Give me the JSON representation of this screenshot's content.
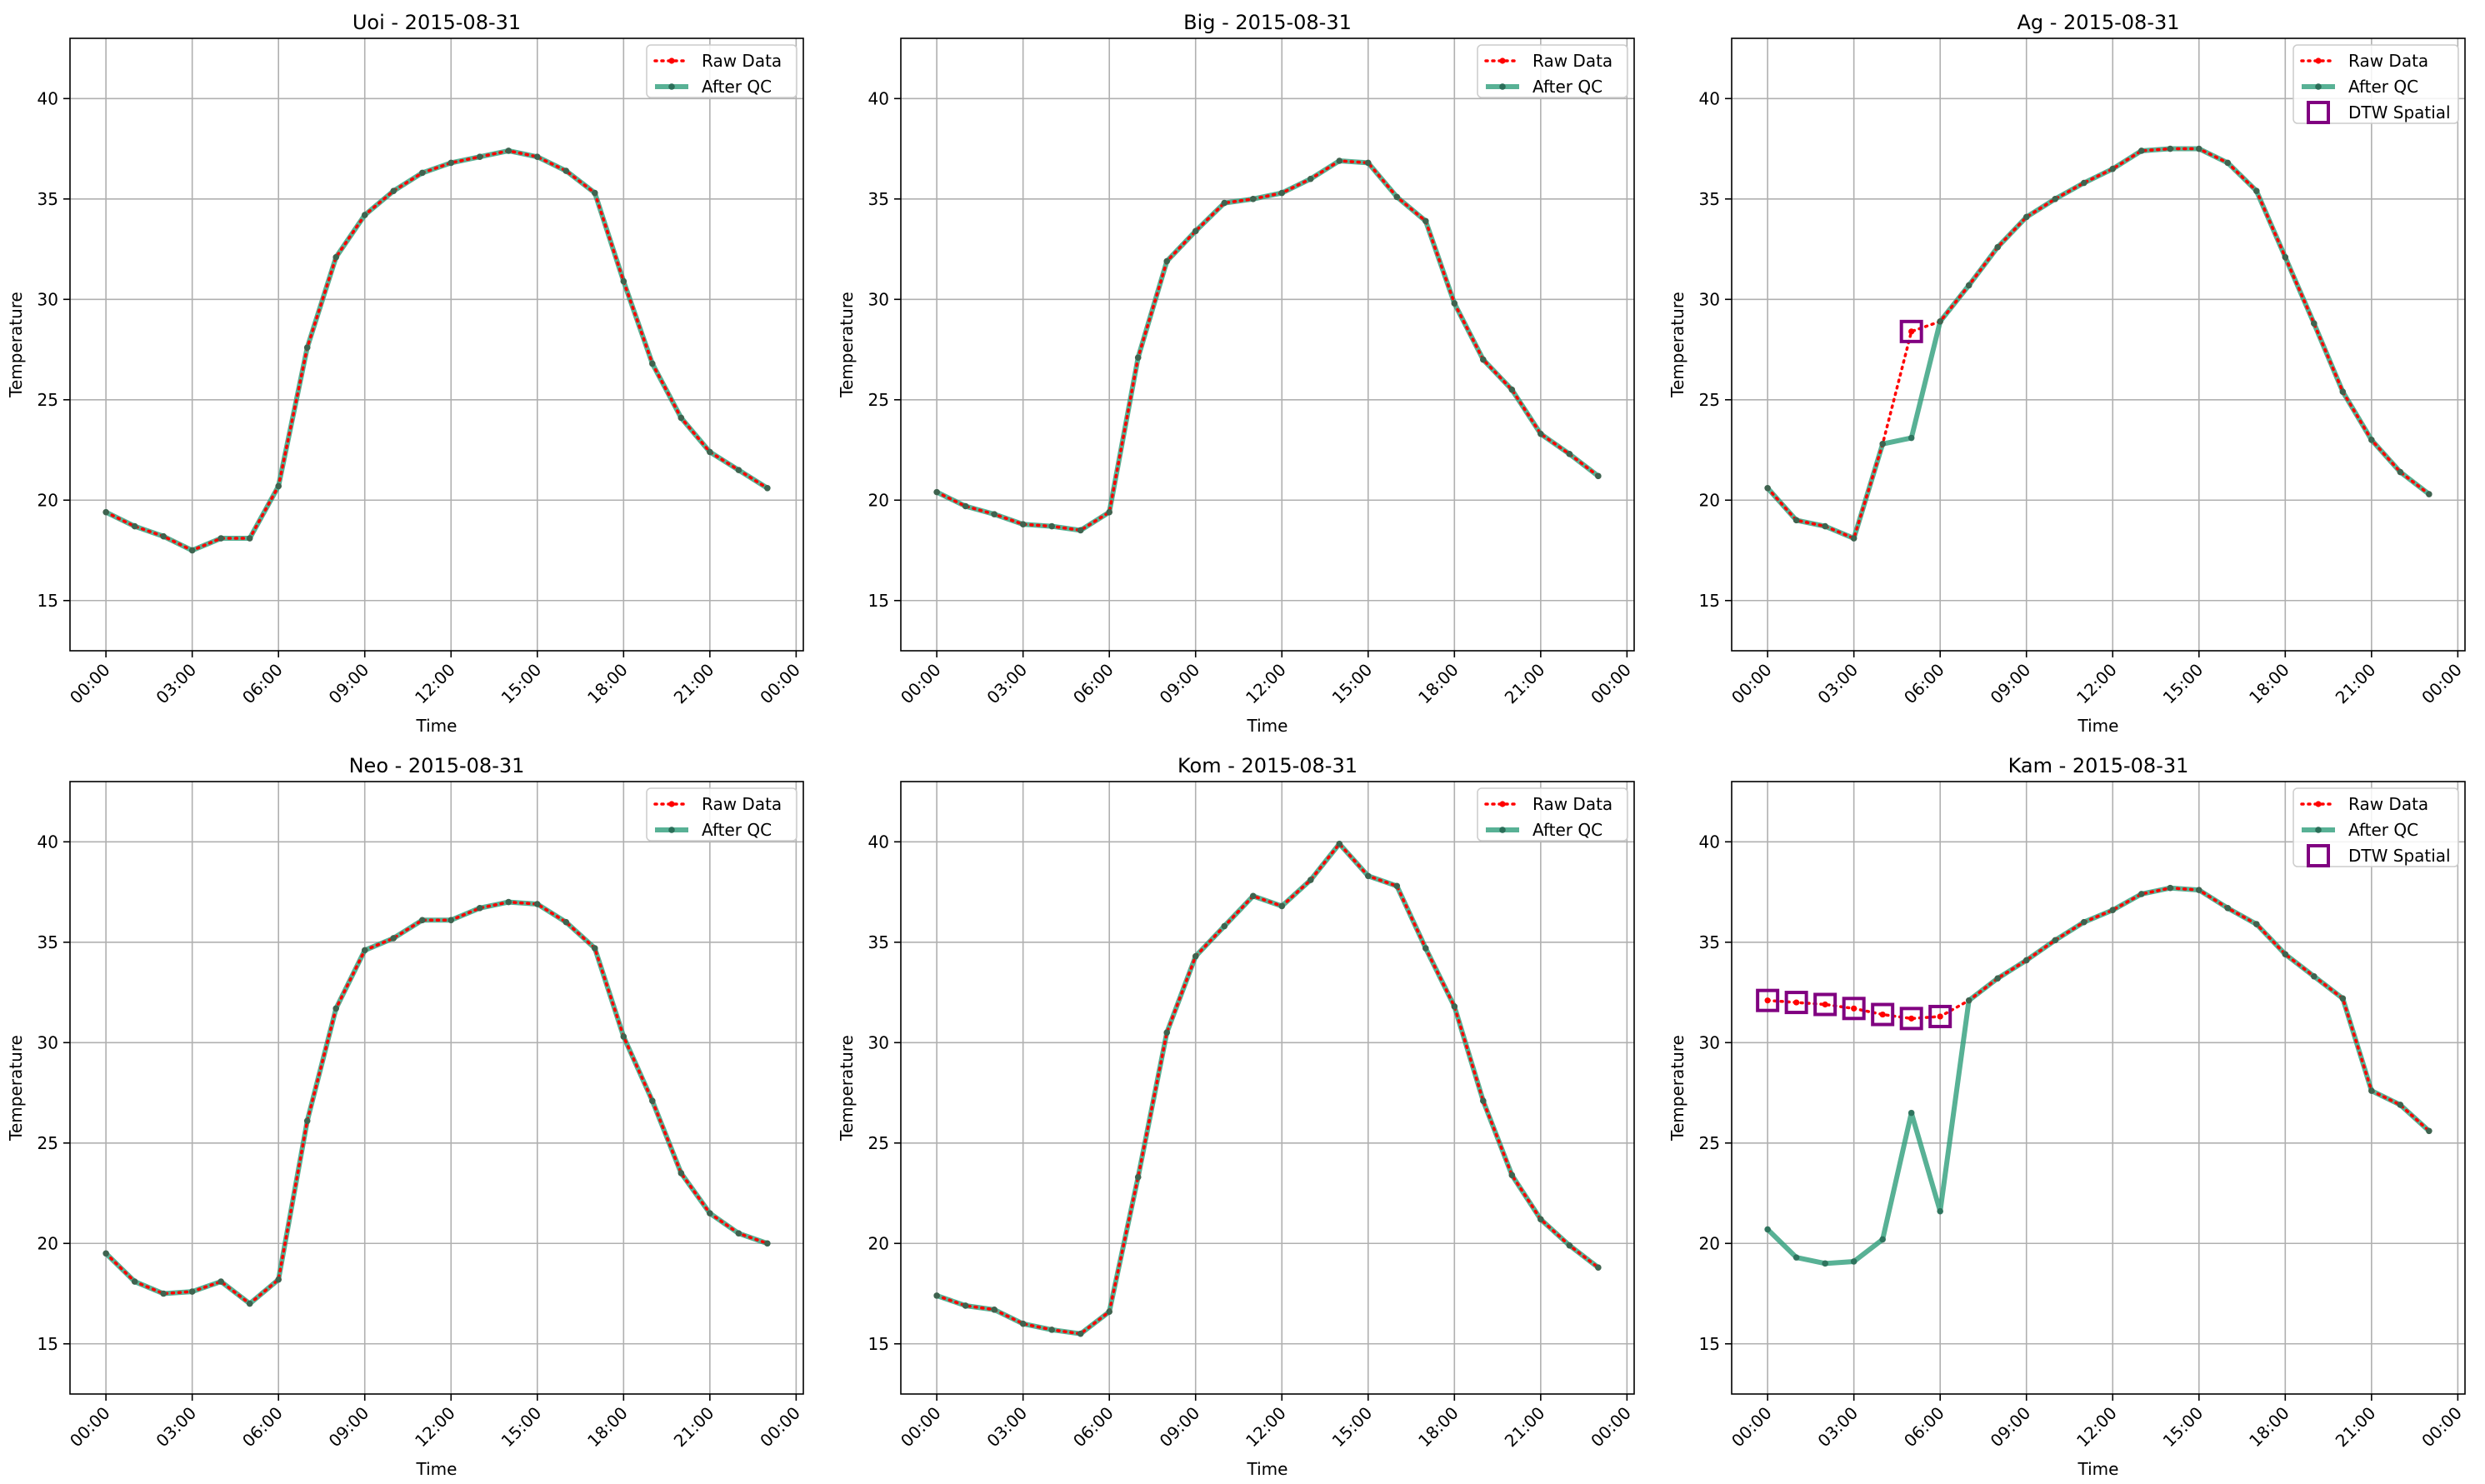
{
  "time_ticks": [
    "00:00",
    "03:00",
    "06:00",
    "09:00",
    "12:00",
    "15:00",
    "18:00",
    "21:00",
    "00:00"
  ],
  "colors": {
    "raw": "#ff0000",
    "qc": "#2e9e7a",
    "qc_marker": "#2a6e58",
    "dtw": "#800080",
    "grid": "#b0b0b0"
  },
  "legend_labels": {
    "raw": "Raw Data",
    "qc": "After QC",
    "dtw": "DTW Spatial"
  },
  "chart_data": [
    {
      "type": "line",
      "title": "Uoi - 2015-08-31",
      "xlabel": "Time",
      "ylabel": "Temperature",
      "ylim": [
        12.5,
        43
      ],
      "yticks": [
        15,
        20,
        25,
        30,
        35,
        40
      ],
      "x_hours": [
        0,
        1,
        2,
        3,
        4,
        5,
        6,
        7,
        8,
        9,
        10,
        11,
        12,
        13,
        14,
        15,
        16,
        17,
        18,
        19,
        20,
        21,
        22,
        23
      ],
      "series": [
        {
          "name": "Raw Data",
          "values": [
            19.4,
            18.7,
            18.2,
            17.5,
            18.1,
            18.1,
            20.7,
            27.6,
            32.1,
            34.2,
            35.4,
            36.3,
            36.8,
            37.1,
            37.4,
            37.1,
            36.4,
            35.3,
            30.9,
            26.8,
            24.1,
            22.4,
            21.5,
            20.6
          ]
        },
        {
          "name": "After QC",
          "values": [
            19.4,
            18.7,
            18.2,
            17.5,
            18.1,
            18.1,
            20.7,
            27.6,
            32.1,
            34.2,
            35.4,
            36.3,
            36.8,
            37.1,
            37.4,
            37.1,
            36.4,
            35.3,
            30.9,
            26.8,
            24.1,
            22.4,
            21.5,
            20.6
          ]
        }
      ],
      "dtw_hours": []
    },
    {
      "type": "line",
      "title": "Big - 2015-08-31",
      "xlabel": "Time",
      "ylabel": "Temperature",
      "ylim": [
        12.5,
        43
      ],
      "yticks": [
        15,
        20,
        25,
        30,
        35,
        40
      ],
      "x_hours": [
        0,
        1,
        2,
        3,
        4,
        5,
        6,
        7,
        8,
        9,
        10,
        11,
        12,
        13,
        14,
        15,
        16,
        17,
        18,
        19,
        20,
        21,
        22,
        23
      ],
      "series": [
        {
          "name": "Raw Data",
          "values": [
            20.4,
            19.7,
            19.3,
            18.8,
            18.7,
            18.5,
            19.4,
            27.1,
            31.9,
            33.4,
            34.8,
            35.0,
            35.3,
            36.0,
            36.9,
            36.8,
            35.1,
            33.9,
            29.8,
            27.0,
            25.5,
            23.3,
            22.3,
            21.2
          ]
        },
        {
          "name": "After QC",
          "values": [
            20.4,
            19.7,
            19.3,
            18.8,
            18.7,
            18.5,
            19.4,
            27.1,
            31.9,
            33.4,
            34.8,
            35.0,
            35.3,
            36.0,
            36.9,
            36.8,
            35.1,
            33.9,
            29.8,
            27.0,
            25.5,
            23.3,
            22.3,
            21.2
          ]
        }
      ],
      "dtw_hours": []
    },
    {
      "type": "line",
      "title": "Ag - 2015-08-31",
      "xlabel": "Time",
      "ylabel": "Temperature",
      "ylim": [
        12.5,
        43
      ],
      "yticks": [
        15,
        20,
        25,
        30,
        35,
        40
      ],
      "x_hours": [
        0,
        1,
        2,
        3,
        4,
        5,
        6,
        7,
        8,
        9,
        10,
        11,
        12,
        13,
        14,
        15,
        16,
        17,
        18,
        19,
        20,
        21,
        22,
        23
      ],
      "series": [
        {
          "name": "Raw Data",
          "values": [
            20.6,
            19.0,
            18.7,
            18.1,
            22.8,
            28.4,
            28.9,
            30.7,
            32.6,
            34.1,
            35.0,
            35.8,
            36.5,
            37.4,
            37.5,
            37.5,
            36.8,
            35.4,
            32.1,
            28.8,
            25.4,
            23.0,
            21.4,
            20.3
          ]
        },
        {
          "name": "After QC",
          "values": [
            20.6,
            19.0,
            18.7,
            18.1,
            22.8,
            23.1,
            28.9,
            30.7,
            32.6,
            34.1,
            35.0,
            35.8,
            36.5,
            37.4,
            37.5,
            37.5,
            36.8,
            35.4,
            32.1,
            28.8,
            25.4,
            23.0,
            21.4,
            20.3
          ]
        }
      ],
      "dtw_hours": [
        5
      ]
    },
    {
      "type": "line",
      "title": "Neo - 2015-08-31",
      "xlabel": "Time",
      "ylabel": "Temperature",
      "ylim": [
        12.5,
        43
      ],
      "yticks": [
        15,
        20,
        25,
        30,
        35,
        40
      ],
      "x_hours": [
        0,
        1,
        2,
        3,
        4,
        5,
        6,
        7,
        8,
        9,
        10,
        11,
        12,
        13,
        14,
        15,
        16,
        17,
        18,
        19,
        20,
        21,
        22,
        23
      ],
      "series": [
        {
          "name": "Raw Data",
          "values": [
            19.5,
            18.1,
            17.5,
            17.6,
            18.1,
            17.0,
            18.2,
            26.1,
            31.7,
            34.6,
            35.2,
            36.1,
            36.1,
            36.7,
            37.0,
            36.9,
            36.0,
            34.7,
            30.3,
            27.1,
            23.5,
            21.5,
            20.5,
            20.0
          ]
        },
        {
          "name": "After QC",
          "values": [
            19.5,
            18.1,
            17.5,
            17.6,
            18.1,
            17.0,
            18.2,
            26.1,
            31.7,
            34.6,
            35.2,
            36.1,
            36.1,
            36.7,
            37.0,
            36.9,
            36.0,
            34.7,
            30.3,
            27.1,
            23.5,
            21.5,
            20.5,
            20.0
          ]
        }
      ],
      "dtw_hours": []
    },
    {
      "type": "line",
      "title": "Kom - 2015-08-31",
      "xlabel": "Time",
      "ylabel": "Temperature",
      "ylim": [
        12.5,
        43
      ],
      "yticks": [
        15,
        20,
        25,
        30,
        35,
        40
      ],
      "x_hours": [
        0,
        1,
        2,
        3,
        4,
        5,
        6,
        7,
        8,
        9,
        10,
        11,
        12,
        13,
        14,
        15,
        16,
        17,
        18,
        19,
        20,
        21,
        22,
        23
      ],
      "series": [
        {
          "name": "Raw Data",
          "values": [
            17.4,
            16.9,
            16.7,
            16.0,
            15.7,
            15.5,
            16.6,
            23.3,
            30.5,
            34.3,
            35.8,
            37.3,
            36.8,
            38.1,
            39.9,
            38.3,
            37.8,
            34.7,
            31.8,
            27.1,
            23.4,
            21.2,
            19.9,
            18.8
          ]
        },
        {
          "name": "After QC",
          "values": [
            17.4,
            16.9,
            16.7,
            16.0,
            15.7,
            15.5,
            16.6,
            23.3,
            30.5,
            34.3,
            35.8,
            37.3,
            36.8,
            38.1,
            39.9,
            38.3,
            37.8,
            34.7,
            31.8,
            27.1,
            23.4,
            21.2,
            19.9,
            18.8
          ]
        }
      ],
      "dtw_hours": []
    },
    {
      "type": "line",
      "title": "Kam - 2015-08-31",
      "xlabel": "Time",
      "ylabel": "Temperature",
      "ylim": [
        12.5,
        43
      ],
      "yticks": [
        15,
        20,
        25,
        30,
        35,
        40
      ],
      "x_hours": [
        0,
        1,
        2,
        3,
        4,
        5,
        6,
        7,
        8,
        9,
        10,
        11,
        12,
        13,
        14,
        15,
        16,
        17,
        18,
        19,
        20,
        21,
        22,
        23
      ],
      "series": [
        {
          "name": "Raw Data",
          "values": [
            32.1,
            32.0,
            31.9,
            31.7,
            31.4,
            31.2,
            31.3,
            32.1,
            33.2,
            34.1,
            35.1,
            36.0,
            36.6,
            37.4,
            37.7,
            37.6,
            36.7,
            35.9,
            34.4,
            33.3,
            32.2,
            27.6,
            26.9,
            25.6
          ]
        },
        {
          "name": "After QC",
          "values": [
            20.7,
            19.3,
            19.0,
            19.1,
            20.2,
            26.5,
            21.6,
            32.1,
            33.2,
            34.1,
            35.1,
            36.0,
            36.6,
            37.4,
            37.7,
            37.6,
            36.7,
            35.9,
            34.4,
            33.3,
            32.2,
            27.6,
            26.9,
            25.6
          ]
        }
      ],
      "dtw_hours": [
        0,
        1,
        2,
        3,
        4,
        5,
        6
      ]
    }
  ]
}
